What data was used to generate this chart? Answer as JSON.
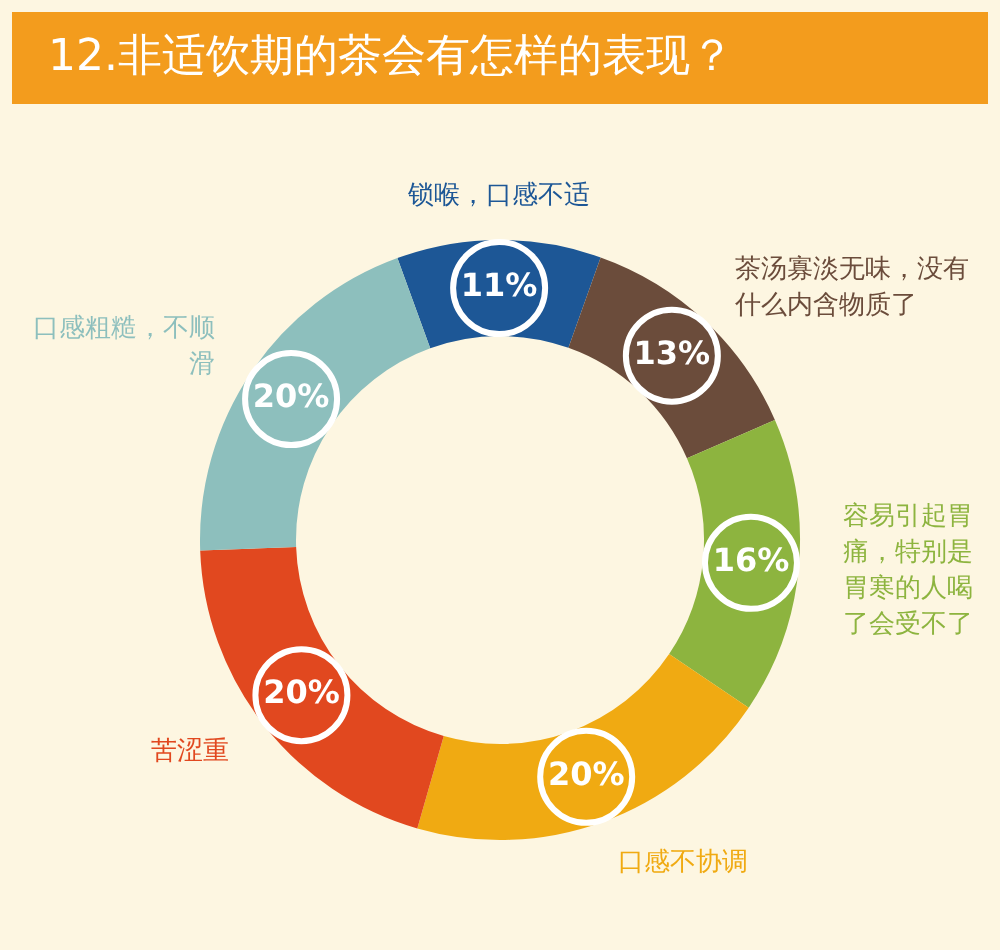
{
  "chart_data": {
    "type": "donut",
    "title": "12.非适饮期的茶会有怎样的表现？",
    "categories": [
      "锁喉，口感不适",
      "茶汤寡淡无味，没有什么内含物质了",
      "容易引起胃痛，特别是胃寒的人喝了会受不了",
      "口感不协调",
      "苦涩重",
      "口感粗糙，不顺滑"
    ],
    "values": [
      11,
      13,
      16,
      20,
      20,
      20
    ],
    "value_labels": [
      "11%",
      "13%",
      "16%",
      "20%",
      "20%",
      "20%"
    ],
    "colors": [
      "#1d5796",
      "#6b4c3b",
      "#8db43f",
      "#f0aa12",
      "#e1481f",
      "#8dbfbd"
    ],
    "legend": false
  }
}
